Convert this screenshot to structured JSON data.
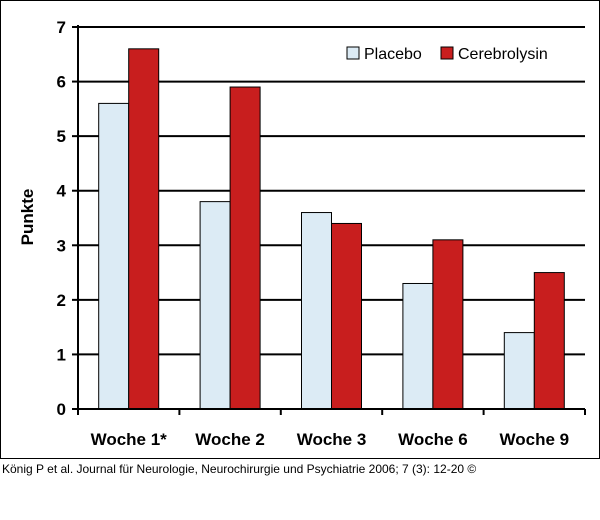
{
  "chart_data": {
    "type": "bar",
    "categories": [
      "Woche 1*",
      "Woche 2",
      "Woche 3",
      "Woche 6",
      "Woche 9"
    ],
    "series": [
      {
        "name": "Placebo",
        "values": [
          5.6,
          3.8,
          3.6,
          2.3,
          1.4
        ],
        "color": "#dcebf5"
      },
      {
        "name": "Cerebrolysin",
        "values": [
          6.6,
          5.9,
          3.4,
          3.1,
          2.5
        ],
        "color": "#c81e1e"
      }
    ],
    "ylabel": "Punkte",
    "xlabel": "",
    "ylim": [
      0,
      7
    ],
    "yticks": [
      0,
      1,
      2,
      3,
      4,
      5,
      6,
      7
    ],
    "grid": true,
    "legend": "top-right"
  },
  "caption": "König P et al. Journal für Neurologie, Neurochirurgie und Psychiatrie 2006; 7 (3): 12-20 ©"
}
